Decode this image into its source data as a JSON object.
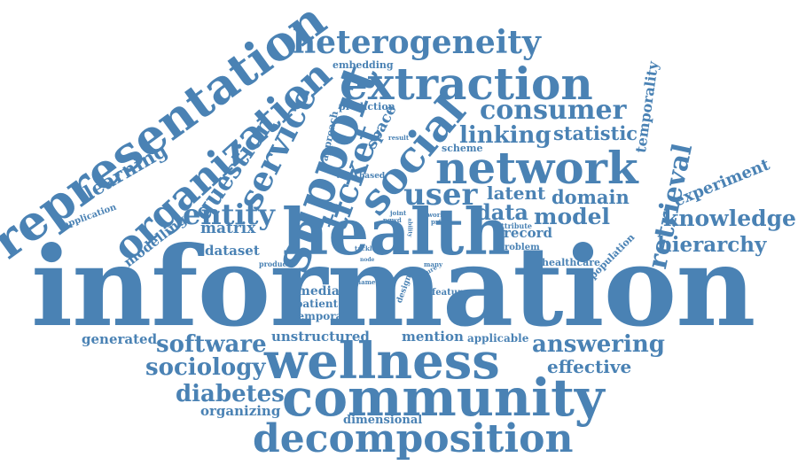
{
  "cloud": {
    "color": "#4a82b4",
    "words": {
      "information": "information",
      "health": "health",
      "wellness": "wellness",
      "community": "community",
      "decomposition": "decomposition",
      "network": "network",
      "extraction": "extraction",
      "heterogeneity": "heterogeneity",
      "representation": "representation",
      "organization": "organization",
      "support": "support",
      "social": "social",
      "ticket": "ticket",
      "service": "service",
      "consumer": "consumer",
      "linking": "linking",
      "statistic": "statistic",
      "user": "user",
      "latent": "latent",
      "domain": "domain",
      "data": "data",
      "model": "model",
      "retrieval": "retrieval",
      "knowledge": "knowledge",
      "hierarchy": "hierarchy",
      "experiment": "experiment",
      "temporality": "temporality",
      "entity": "entity",
      "question": "question",
      "learning": "learning",
      "matrix": "matrix",
      "modelling": "modelling",
      "application": "application",
      "dataset": "dataset",
      "embedding": "embedding",
      "prediction": "prediction",
      "approach": "approach",
      "space": "space",
      "scheme": "scheme",
      "software": "software",
      "sociology": "sociology",
      "diabetes": "diabetes",
      "organizing": "organizing",
      "generated": "generated",
      "unstructured": "unstructured",
      "mention": "mention",
      "applicable": "applicable",
      "answering": "answering",
      "effective": "effective",
      "media": "media",
      "patient": "patient",
      "temporal": "temporal",
      "dimensional": "dimensional",
      "healthcare": "healthcare",
      "population": "population",
      "record": "record",
      "problem": "problem",
      "attribute": "attribute",
      "feature": "feature",
      "design": "design",
      "name": "name",
      "product": "product",
      "based": "based",
      "joint": "joint",
      "pgwd": "pgwd",
      "world": "world",
      "result": "result",
      "prior": "prior",
      "tackle": "tackle",
      "many": "many",
      "nature": "nature",
      "node": "node",
      "ability": "ability"
    }
  }
}
